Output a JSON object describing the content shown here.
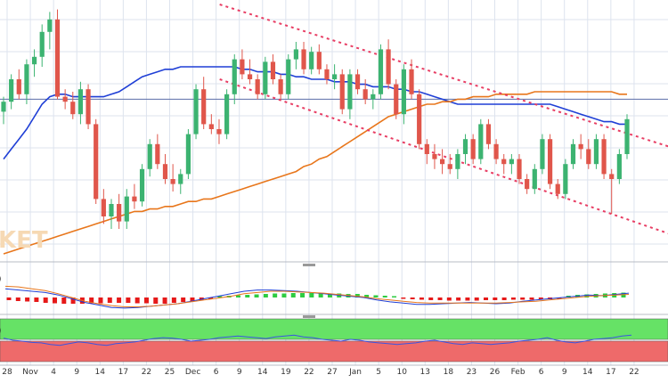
{
  "colors": {
    "bull": "#3cb371",
    "bear": "#e0564b",
    "sma_fast": "#1f3fd6",
    "sma_slow": "#e8761b",
    "channel": "#e83e64",
    "macd_pos": "#2ecc40",
    "macd_neg": "#e61919",
    "rsi_upper_band": "#66e266",
    "rsi_lower_band": "#ee6a6a",
    "grid": "#dde3ee",
    "axis_text": "#333333",
    "watermark": "#f6d9b4"
  },
  "watermark": {
    "text": "KET",
    "icon": "fxstreet-watermark-fragment"
  },
  "chart_data": [
    {
      "type": "candlestick",
      "panel": "price",
      "title": "",
      "xlabel": "",
      "ylabel": "",
      "x_ticks": [
        "28",
        "Nov",
        "4",
        "9",
        "14",
        "17",
        "22",
        "25",
        "Dec",
        "6",
        "9",
        "14",
        "19",
        "22",
        "27",
        "Jan",
        "5",
        "10",
        "13",
        "18",
        "23",
        "26",
        "Feb",
        "6",
        "9",
        "14",
        "17",
        "22"
      ],
      "y_axis": "hidden",
      "ylim": [
        0,
        100
      ],
      "grid": true,
      "candles": [
        [
          57,
          63,
          52,
          61
        ],
        [
          61,
          72,
          58,
          70
        ],
        [
          70,
          74,
          62,
          64
        ],
        [
          64,
          78,
          60,
          76
        ],
        [
          76,
          82,
          71,
          79
        ],
        [
          79,
          92,
          75,
          89
        ],
        [
          89,
          97,
          82,
          94
        ],
        [
          94,
          98,
          62,
          63
        ],
        [
          63,
          66,
          58,
          61
        ],
        [
          61,
          65,
          54,
          56
        ],
        [
          56,
          69,
          52,
          66
        ],
        [
          66,
          68,
          50,
          52
        ],
        [
          52,
          54,
          20,
          22
        ],
        [
          22,
          26,
          12,
          15
        ],
        [
          15,
          22,
          10,
          20
        ],
        [
          20,
          24,
          10,
          13
        ],
        [
          13,
          26,
          10,
          23
        ],
        [
          23,
          28,
          18,
          21
        ],
        [
          21,
          36,
          19,
          34
        ],
        [
          34,
          46,
          31,
          44
        ],
        [
          44,
          48,
          34,
          36
        ],
        [
          36,
          40,
          28,
          30
        ],
        [
          30,
          36,
          25,
          28
        ],
        [
          28,
          34,
          24,
          32
        ],
        [
          32,
          50,
          30,
          48
        ],
        [
          48,
          68,
          46,
          66
        ],
        [
          66,
          71,
          50,
          52
        ],
        [
          52,
          56,
          48,
          50
        ],
        [
          50,
          54,
          44,
          48
        ],
        [
          48,
          66,
          46,
          64
        ],
        [
          64,
          80,
          60,
          78
        ],
        [
          78,
          82,
          70,
          72
        ],
        [
          72,
          78,
          68,
          70
        ],
        [
          70,
          72,
          62,
          64
        ],
        [
          64,
          79,
          62,
          77
        ],
        [
          77,
          80,
          68,
          70
        ],
        [
          70,
          72,
          62,
          64
        ],
        [
          64,
          80,
          62,
          78
        ],
        [
          78,
          85,
          74,
          82
        ],
        [
          82,
          85,
          72,
          74
        ],
        [
          74,
          83,
          72,
          81
        ],
        [
          81,
          84,
          72,
          74
        ],
        [
          74,
          76,
          68,
          70
        ],
        [
          70,
          76,
          66,
          72
        ],
        [
          72,
          74,
          56,
          58
        ],
        [
          58,
          74,
          54,
          72
        ],
        [
          72,
          74,
          64,
          66
        ],
        [
          66,
          70,
          60,
          62
        ],
        [
          62,
          66,
          58,
          64
        ],
        [
          64,
          84,
          62,
          82
        ],
        [
          82,
          86,
          66,
          68
        ],
        [
          68,
          70,
          54,
          56
        ],
        [
          56,
          76,
          52,
          74
        ],
        [
          74,
          78,
          62,
          64
        ],
        [
          64,
          66,
          42,
          44
        ],
        [
          44,
          46,
          36,
          40
        ],
        [
          40,
          44,
          34,
          38
        ],
        [
          38,
          42,
          32,
          36
        ],
        [
          36,
          40,
          32,
          34
        ],
        [
          34,
          42,
          30,
          40
        ],
        [
          40,
          48,
          36,
          46
        ],
        [
          46,
          48,
          36,
          38
        ],
        [
          38,
          54,
          36,
          52
        ],
        [
          52,
          54,
          42,
          44
        ],
        [
          44,
          46,
          36,
          38
        ],
        [
          38,
          40,
          32,
          36
        ],
        [
          36,
          40,
          32,
          38
        ],
        [
          38,
          40,
          28,
          30
        ],
        [
          30,
          32,
          24,
          26
        ],
        [
          26,
          36,
          24,
          34
        ],
        [
          34,
          48,
          32,
          46
        ],
        [
          46,
          48,
          26,
          28
        ],
        [
          28,
          30,
          22,
          24
        ],
        [
          24,
          38,
          22,
          36
        ],
        [
          36,
          46,
          34,
          44
        ],
        [
          44,
          48,
          38,
          42
        ],
        [
          42,
          46,
          34,
          36
        ],
        [
          36,
          48,
          34,
          46
        ],
        [
          46,
          48,
          30,
          32
        ],
        [
          32,
          34,
          16,
          30
        ],
        [
          30,
          42,
          28,
          40
        ],
        [
          40,
          56,
          38,
          54
        ]
      ],
      "series": [
        {
          "type": "line",
          "role": "sma_fast",
          "values": [
            38,
            42,
            46,
            50,
            55,
            60,
            63,
            64,
            64,
            63,
            63,
            63,
            63,
            63,
            64,
            65,
            67,
            69,
            71,
            72,
            73,
            74,
            74,
            75,
            75,
            75,
            75,
            75,
            75,
            75,
            75,
            74,
            74,
            73,
            73,
            73,
            72,
            72,
            71,
            71,
            70,
            70,
            70,
            69,
            69,
            69,
            68,
            68,
            67,
            67,
            67,
            66,
            66,
            65,
            65,
            64,
            63,
            62,
            61,
            60,
            60,
            60,
            60,
            60,
            60,
            60,
            60,
            60,
            60,
            60,
            60,
            60,
            59,
            58,
            57,
            56,
            55,
            54,
            53,
            53,
            52,
            52
          ]
        },
        {
          "type": "line",
          "role": "sma_slow",
          "values": [
            0,
            1,
            2,
            3,
            4,
            5,
            6,
            7,
            8,
            9,
            10,
            11,
            12,
            13,
            14,
            15,
            16,
            17,
            17,
            18,
            18,
            19,
            19,
            20,
            21,
            21,
            22,
            22,
            23,
            24,
            25,
            26,
            27,
            28,
            29,
            30,
            31,
            32,
            33,
            35,
            36,
            38,
            39,
            41,
            43,
            45,
            47,
            49,
            51,
            53,
            55,
            56,
            57,
            58,
            59,
            60,
            60,
            61,
            61,
            62,
            62,
            63,
            63,
            63,
            64,
            64,
            64,
            64,
            64,
            65,
            65,
            65,
            65,
            65,
            65,
            65,
            65,
            65,
            65,
            65,
            64,
            64
          ]
        }
      ],
      "trendlines": [
        {
          "role": "channel-upper",
          "from": [
            30,
            100
          ],
          "to": [
            90,
            42
          ]
        },
        {
          "role": "channel-lower",
          "from": [
            30,
            70
          ],
          "to": [
            90,
            7
          ]
        }
      ],
      "reference_lines": [
        {
          "axis": "y",
          "value": 62
        }
      ]
    },
    {
      "type": "bar",
      "panel": "macd",
      "series_label": ")",
      "ylim": [
        -1,
        1
      ],
      "histogram": [
        -0.2,
        -0.3,
        -0.35,
        -0.4,
        -0.5,
        -0.55,
        -0.6,
        -0.6,
        -0.6,
        -0.55,
        -0.55,
        -0.5,
        -0.5,
        -0.5,
        -0.55,
        -0.55,
        -0.6,
        -0.6,
        -0.5,
        -0.4,
        -0.3,
        -0.2,
        -0.1,
        0.05,
        0.1,
        0.15,
        0.2,
        0.25,
        0.3,
        0.35,
        0.35,
        0.4,
        0.4,
        0.4,
        0.4,
        0.35,
        0.35,
        0.3,
        0.3,
        0.2,
        0.15,
        0.1,
        0.05,
        -0.05,
        -0.1,
        -0.15,
        -0.2,
        -0.2,
        -0.25,
        -0.25,
        -0.25,
        -0.25,
        -0.2,
        -0.2,
        -0.2,
        -0.15,
        -0.15,
        -0.15,
        -0.1,
        -0.1,
        -0.05,
        0.1,
        0.2,
        0.25,
        0.3,
        0.35,
        0.4,
        0.45
      ],
      "series": [
        {
          "type": "line",
          "role": "macd-line",
          "values": [
            0.7,
            0.6,
            0.5,
            0.4,
            0.2,
            -0.1,
            -0.4,
            -0.6,
            -0.8,
            -0.85,
            -0.8,
            -0.7,
            -0.6,
            -0.5,
            -0.3,
            -0.1,
            0.1,
            0.3,
            0.5,
            0.6,
            0.6,
            0.55,
            0.5,
            0.4,
            0.3,
            0.2,
            0.1,
            0.0,
            -0.2,
            -0.35,
            -0.45,
            -0.55,
            -0.55,
            -0.5,
            -0.45,
            -0.4,
            -0.45,
            -0.5,
            -0.45,
            -0.3,
            -0.2,
            -0.1,
            0.0,
            0.1,
            0.2,
            0.15,
            0.25,
            0.35
          ]
        },
        {
          "type": "line",
          "role": "signal-line",
          "values": [
            0.9,
            0.85,
            0.7,
            0.55,
            0.3,
            0.0,
            -0.3,
            -0.5,
            -0.65,
            -0.75,
            -0.75,
            -0.7,
            -0.6,
            -0.5,
            -0.35,
            -0.2,
            -0.05,
            0.1,
            0.3,
            0.4,
            0.5,
            0.5,
            0.45,
            0.4,
            0.35,
            0.25,
            0.15,
            0.05,
            -0.1,
            -0.2,
            -0.3,
            -0.4,
            -0.45,
            -0.45,
            -0.45,
            -0.45,
            -0.45,
            -0.45,
            -0.4,
            -0.35,
            -0.3,
            -0.2,
            -0.1,
            0.0,
            0.1,
            0.15,
            0.2,
            0.25
          ]
        }
      ]
    },
    {
      "type": "line",
      "panel": "rsi",
      "series_label": ")",
      "ylim": [
        0,
        100
      ],
      "bands": [
        {
          "role": "overbought-zone",
          "range": [
            52,
            100
          ]
        },
        {
          "role": "oversold-zone",
          "range": [
            0,
            48
          ]
        }
      ],
      "series": [
        {
          "type": "line",
          "role": "rsi",
          "values": [
            55,
            50,
            48,
            45,
            44,
            40,
            38,
            42,
            46,
            44,
            40,
            38,
            42,
            44,
            46,
            50,
            54,
            56,
            55,
            52,
            48,
            50,
            52,
            56,
            58,
            60,
            58,
            56,
            54,
            58,
            60,
            62,
            58,
            56,
            52,
            50,
            48,
            52,
            50,
            46,
            44,
            42,
            40,
            42,
            44,
            48,
            50,
            46,
            42,
            40,
            44,
            42,
            40,
            42,
            44,
            48,
            50,
            52,
            56,
            50,
            46,
            44,
            48,
            52,
            54,
            56,
            60,
            62
          ]
        }
      ]
    }
  ]
}
